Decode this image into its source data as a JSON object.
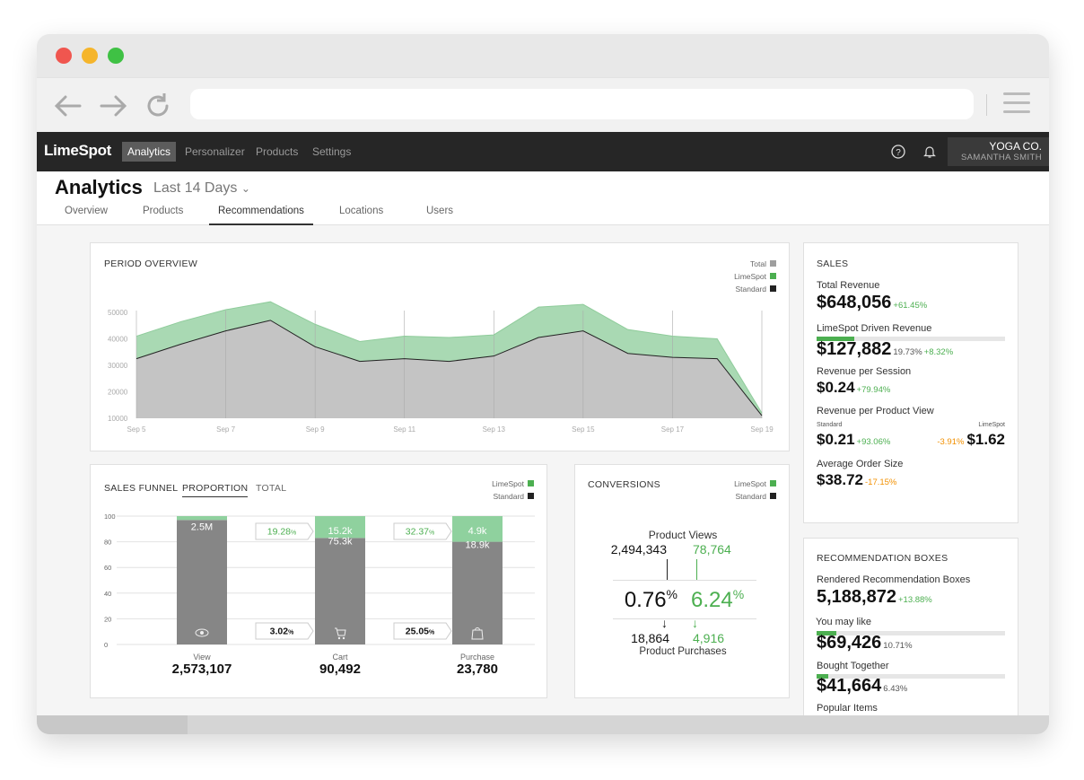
{
  "app": {
    "logo": "LimeSpot",
    "nav": [
      "Analytics",
      "Personalizer",
      "Products",
      "Settings"
    ],
    "account": {
      "company": "YOGA CO.",
      "user": "SAMANTHA SMITH"
    }
  },
  "page": {
    "title": "Analytics",
    "range": "Last 14 Days",
    "tabs": [
      "Overview",
      "Products",
      "Recommendations",
      "Locations",
      "Users"
    ],
    "active_tab": "Recommendations"
  },
  "colors": {
    "limespot": "#4caf50",
    "total": "#9e9e9e",
    "standard": "#222222",
    "area_green": "#a9d9b3",
    "area_gray": "#c4c4c4",
    "orange": "#f29000"
  },
  "legend_labels": {
    "total": "Total",
    "limespot": "LimeSpot",
    "standard": "Standard"
  },
  "period": {
    "title": "PERIOD OVERVIEW",
    "chart_data": {
      "type": "area",
      "x": [
        "Sep 5",
        "Sep 6",
        "Sep 7",
        "Sep 8",
        "Sep 9",
        "Sep 10",
        "Sep 11",
        "Sep 12",
        "Sep 13",
        "Sep 14",
        "Sep 15",
        "Sep 16",
        "Sep 17",
        "Sep 18",
        "Sep 19"
      ],
      "x_ticks": [
        "Sep 5",
        "Sep 7",
        "Sep 9",
        "Sep 11",
        "Sep 13",
        "Sep 15",
        "Sep 17",
        "Sep 19"
      ],
      "ylim": [
        10000,
        50000
      ],
      "y_ticks": [
        "50000",
        "40000",
        "30000",
        "20000",
        "10000"
      ],
      "y_ticks_extra": [
        "50000",
        "50000",
        "40000",
        "30000",
        "20000",
        "10000"
      ],
      "series": [
        {
          "name": "Total",
          "values": [
            41000,
            46500,
            51000,
            54000,
            45500,
            39000,
            41000,
            40500,
            41500,
            52000,
            53000,
            43500,
            41000,
            40000,
            12000
          ]
        },
        {
          "name": "Standard",
          "values": [
            32500,
            38000,
            43000,
            47000,
            37000,
            31500,
            32500,
            31500,
            33500,
            40500,
            43000,
            34500,
            33000,
            32500,
            11000
          ]
        }
      ]
    }
  },
  "funnel": {
    "title": "SALES FUNNEL",
    "tabs": [
      "PROPORTION",
      "TOTAL"
    ],
    "y_ticks": [
      "100",
      "80",
      "60",
      "40",
      "20",
      "0"
    ],
    "stages": [
      {
        "name": "View",
        "total": "2,573,107",
        "limespot": "",
        "standard": "2.5M",
        "std_pct": 97,
        "lime_pct": 3
      },
      {
        "name": "Cart",
        "total": "90,492",
        "limespot": "15.2k",
        "standard": "75.3k",
        "std_pct": 83,
        "lime_pct": 17
      },
      {
        "name": "Purchase",
        "total": "23,780",
        "limespot": "4.9k",
        "standard": "18.9k",
        "std_pct": 80,
        "lime_pct": 20
      }
    ],
    "rates": {
      "view_cart_lime": "19.28",
      "view_cart_std": "3.02",
      "cart_purchase_lime": "32.37",
      "cart_purchase_std": "25.05"
    },
    "pct_sign": "%"
  },
  "conversions": {
    "title": "CONVERSIONS",
    "views_label": "Product Views",
    "purchases_label": "Product Purchases",
    "std_views": "2,494,343",
    "lime_views": "78,764",
    "std_rate": "0.76",
    "lime_rate": "6.24",
    "std_purchases": "18,864",
    "lime_purchases": "4,916",
    "pct_sign": "%"
  },
  "sales": {
    "title": "SALES",
    "total_revenue": {
      "label": "Total Revenue",
      "value": "$648,056",
      "change": "+61.45%"
    },
    "limespot_revenue": {
      "label": "LimeSpot Driven Revenue",
      "value": "$127,882",
      "share": "19.73%",
      "change": "+8.32%",
      "bar": 0.2
    },
    "per_session": {
      "label": "Revenue per Session",
      "value": "$0.24",
      "change": "+79.94%"
    },
    "per_view": {
      "label": "Revenue per Product View",
      "std_label": "Standard",
      "lime_label": "LimeSpot",
      "std_value": "$0.21",
      "std_change": "+93.06%",
      "lime_value": "$1.62",
      "lime_change": "-3.91%"
    },
    "order_size": {
      "label": "Average Order Size",
      "value": "$38.72",
      "change": "-17.15%"
    }
  },
  "rec": {
    "title": "RECOMMENDATION BOXES",
    "rendered": {
      "label": "Rendered Recommendation Boxes",
      "value": "5,188,872",
      "change": "+13.88%"
    },
    "boxes": [
      {
        "label": "You may like",
        "value": "$69,426",
        "pct": "10.71%",
        "bar": 0.107
      },
      {
        "label": "Bought Together",
        "value": "$41,664",
        "pct": "6.43%",
        "bar": 0.064
      },
      {
        "label": "Popular Items",
        "value": "",
        "pct": "",
        "bar": 0
      }
    ]
  }
}
